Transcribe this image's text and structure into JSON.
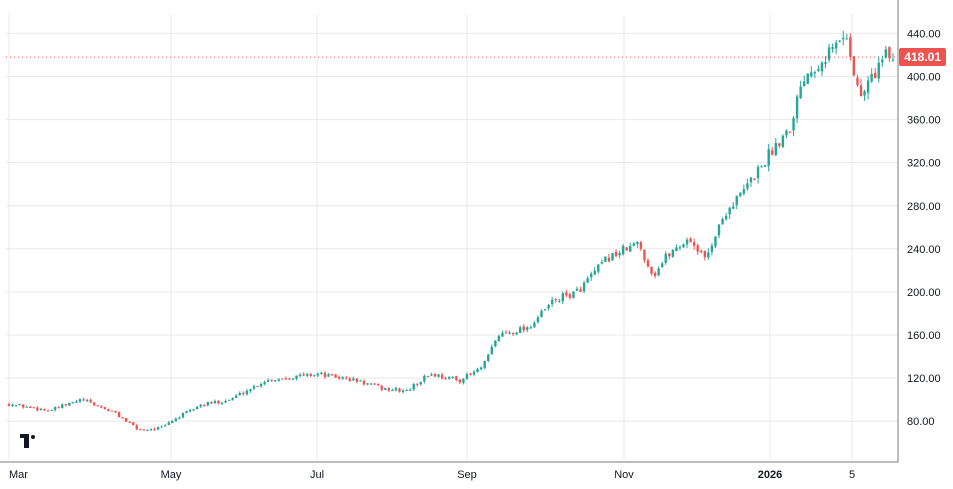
{
  "chart_data": {
    "type": "candlestick",
    "x_tick_labels": [
      "Mar",
      "May",
      "Jul",
      "Sep",
      "Nov",
      "2026",
      "5"
    ],
    "y_tick_labels": [
      "80.00",
      "120.00",
      "160.00",
      "200.00",
      "240.00",
      "280.00",
      "320.00",
      "360.00",
      "400.00",
      "440.00"
    ],
    "y_ticks": [
      80,
      120,
      160,
      200,
      240,
      280,
      320,
      360,
      400,
      440
    ],
    "ylim": [
      44,
      458
    ],
    "grid": true,
    "last_price": 418.01,
    "last_price_label": "418.01",
    "colors": {
      "up": "#26a69a",
      "down": "#ef5350",
      "grid": "#e8e8e8",
      "axis_text": "#131722",
      "price_line": "#ef5350"
    },
    "close_anchors": [
      [
        "Mar",
        0,
        96
      ],
      [
        "Mar",
        0.5,
        90
      ],
      [
        "Mar",
        0.9,
        100
      ],
      [
        "Mar",
        1.3,
        88
      ],
      [
        "Mar",
        1.6,
        72
      ],
      [
        "Mar",
        1.9,
        74
      ],
      [
        "May",
        0,
        80
      ],
      [
        "May",
        0.4,
        95
      ],
      [
        "May",
        0.8,
        100
      ],
      [
        "May",
        1.3,
        118
      ],
      [
        "Jul",
        0,
        124
      ],
      [
        "Jul",
        0.5,
        118
      ],
      [
        "Jul",
        0.9,
        110
      ],
      [
        "Jul",
        1.2,
        108
      ],
      [
        "Jul",
        1.5,
        124
      ],
      [
        "Jul",
        1.9,
        118
      ],
      [
        "Sep",
        0.2,
        130
      ],
      [
        "Sep",
        0.4,
        160
      ],
      [
        "Sep",
        0.8,
        168
      ],
      [
        "Sep",
        1.1,
        192
      ],
      [
        "Sep",
        1.4,
        200
      ],
      [
        "Sep",
        1.8,
        232
      ],
      [
        "Nov",
        0.2,
        245
      ],
      [
        "Nov",
        0.4,
        215
      ],
      [
        "Nov",
        0.6,
        235
      ],
      [
        "Nov",
        0.9,
        250
      ],
      [
        "Nov",
        1.1,
        230
      ],
      [
        "Nov",
        1.4,
        275
      ],
      [
        "Nov",
        1.6,
        290
      ],
      [
        "2026",
        0.2,
        340
      ],
      [
        "2026",
        0.5,
        355
      ],
      [
        "2026",
        0.8,
        400
      ],
      [
        "5",
        -0.1,
        440
      ],
      [
        "5",
        0,
        410
      ],
      [
        "5",
        0.2,
        380
      ],
      [
        "5",
        0.5,
        400
      ],
      [
        "5",
        0.8,
        418
      ]
    ]
  }
}
